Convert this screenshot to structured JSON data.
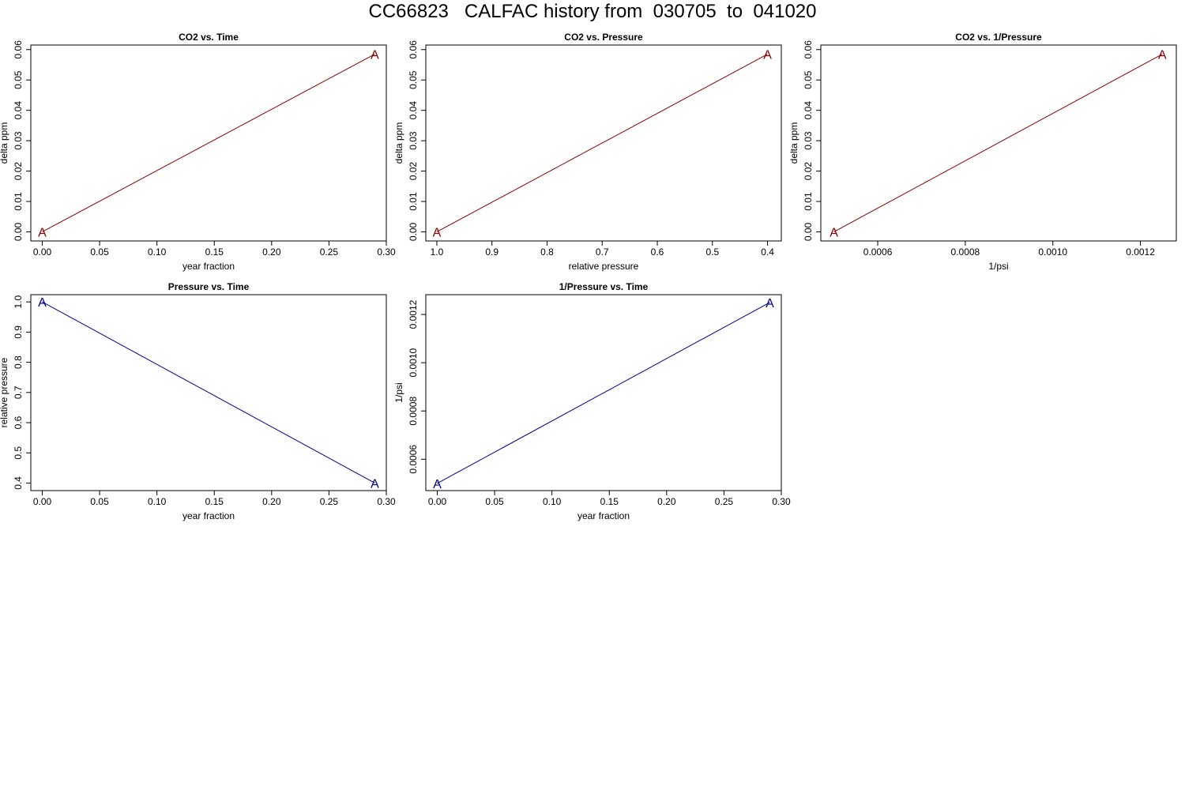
{
  "title": "CC66823   CALFAC history from  030705  to  041020",
  "colors": {
    "co2": "#8b0000",
    "pressure": "#00008b",
    "frame": "#000000"
  },
  "chart_data": [
    {
      "type": "line",
      "title": "CO2 vs. Time",
      "xlabel": "year fraction",
      "ylabel": "delta ppm",
      "xlim": [
        -0.01,
        0.3
      ],
      "ylim": [
        -0.003,
        0.0615
      ],
      "xticks": [
        0.0,
        0.05,
        0.1,
        0.15,
        0.2,
        0.25,
        0.3
      ],
      "xtick_labels": [
        "0.00",
        "0.05",
        "0.10",
        "0.15",
        "0.20",
        "0.25",
        "0.30"
      ],
      "yticks": [
        0.0,
        0.01,
        0.02,
        0.03,
        0.04,
        0.05,
        0.06
      ],
      "ytick_labels": [
        "0.00",
        "0.01",
        "0.02",
        "0.03",
        "0.04",
        "0.05",
        "0.06"
      ],
      "grid": false,
      "color": "co2",
      "series": [
        {
          "x": [
            0.0,
            0.29
          ],
          "y": [
            0.0,
            0.0585
          ],
          "point_labels": [
            "A",
            "A"
          ]
        }
      ]
    },
    {
      "type": "line",
      "title": "CO2 vs. Pressure",
      "xlabel": "relative pressure",
      "ylabel": "delta ppm",
      "xlim": [
        1.02,
        0.375
      ],
      "x_reversed": true,
      "ylim": [
        -0.003,
        0.0615
      ],
      "xticks": [
        1.0,
        0.9,
        0.8,
        0.7,
        0.6,
        0.5,
        0.4
      ],
      "xtick_labels": [
        "1.0",
        "0.9",
        "0.8",
        "0.7",
        "0.6",
        "0.5",
        "0.4"
      ],
      "yticks": [
        0.0,
        0.01,
        0.02,
        0.03,
        0.04,
        0.05,
        0.06
      ],
      "ytick_labels": [
        "0.00",
        "0.01",
        "0.02",
        "0.03",
        "0.04",
        "0.05",
        "0.06"
      ],
      "grid": false,
      "color": "co2",
      "series": [
        {
          "x": [
            1.0,
            0.4
          ],
          "y": [
            0.0,
            0.0585
          ],
          "point_labels": [
            "A",
            "A"
          ]
        }
      ]
    },
    {
      "type": "line",
      "title": "CO2 vs. 1/Pressure",
      "xlabel": "1/psi",
      "ylabel": "delta ppm",
      "xlim": [
        0.00047,
        0.001282
      ],
      "ylim": [
        -0.003,
        0.0615
      ],
      "xticks": [
        0.0006,
        0.0008,
        0.001,
        0.0012
      ],
      "xtick_labels": [
        "0.0006",
        "0.0008",
        "0.0010",
        "0.0012"
      ],
      "yticks": [
        0.0,
        0.01,
        0.02,
        0.03,
        0.04,
        0.05,
        0.06
      ],
      "ytick_labels": [
        "0.00",
        "0.01",
        "0.02",
        "0.03",
        "0.04",
        "0.05",
        "0.06"
      ],
      "grid": false,
      "color": "co2",
      "series": [
        {
          "x": [
            0.0005,
            0.00125
          ],
          "y": [
            0.0,
            0.0585
          ],
          "point_labels": [
            "A",
            "A"
          ]
        }
      ]
    },
    {
      "type": "line",
      "title": "Pressure vs. Time",
      "xlabel": "year fraction",
      "ylabel": "relative pressure",
      "xlim": [
        -0.01,
        0.3
      ],
      "ylim": [
        0.375,
        1.024
      ],
      "xticks": [
        0.0,
        0.05,
        0.1,
        0.15,
        0.2,
        0.25,
        0.3
      ],
      "xtick_labels": [
        "0.00",
        "0.05",
        "0.10",
        "0.15",
        "0.20",
        "0.25",
        "0.30"
      ],
      "yticks": [
        0.4,
        0.5,
        0.6,
        0.7,
        0.8,
        0.9,
        1.0
      ],
      "ytick_labels": [
        "0.4",
        "0.5",
        "0.6",
        "0.7",
        "0.8",
        "0.9",
        "1.0"
      ],
      "grid": false,
      "color": "pressure",
      "series": [
        {
          "x": [
            0.0,
            0.29
          ],
          "y": [
            1.0,
            0.4
          ],
          "point_labels": [
            "A",
            "A"
          ]
        }
      ]
    },
    {
      "type": "line",
      "title": "1/Pressure vs. Time",
      "xlabel": "year fraction",
      "ylabel": "1/psi",
      "xlim": [
        -0.01,
        0.3
      ],
      "ylim": [
        0.00047,
        0.001282
      ],
      "xticks": [
        0.0,
        0.05,
        0.1,
        0.15,
        0.2,
        0.25,
        0.3
      ],
      "xtick_labels": [
        "0.00",
        "0.05",
        "0.10",
        "0.15",
        "0.20",
        "0.25",
        "0.30"
      ],
      "yticks": [
        0.0006,
        0.0008,
        0.001,
        0.0012
      ],
      "ytick_labels": [
        "0.0006",
        "0.0008",
        "0.0010",
        "0.0012"
      ],
      "grid": false,
      "color": "pressure",
      "series": [
        {
          "x": [
            0.0,
            0.29
          ],
          "y": [
            0.0005,
            0.00125
          ],
          "point_labels": [
            "A",
            "A"
          ]
        }
      ]
    }
  ]
}
